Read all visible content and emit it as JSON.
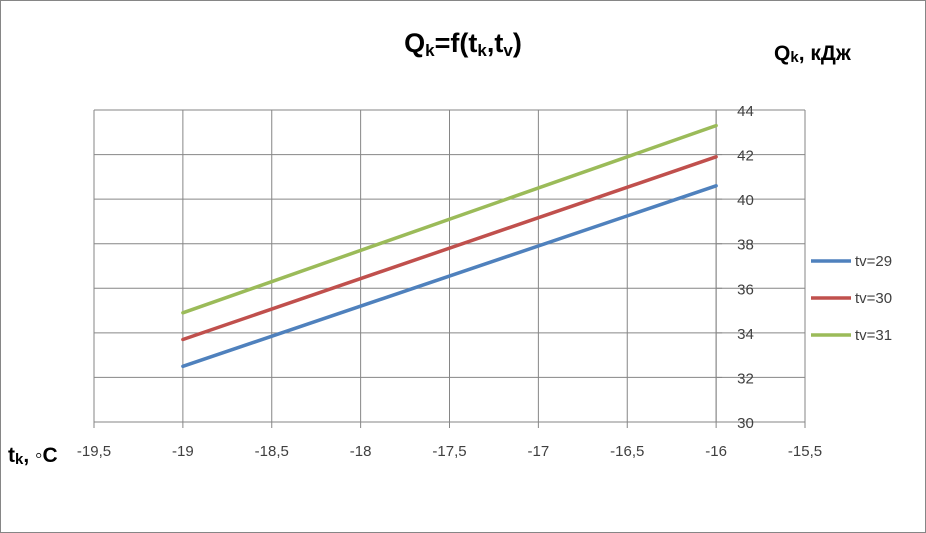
{
  "chart_data": {
    "type": "line",
    "title": {
      "main": "Q",
      "sub": "k",
      "tail": "=f(t",
      "sub2": "k",
      "mid": ",t",
      "sub3": "v",
      "end": ")"
    },
    "ylabel": {
      "main": "Q",
      "sub": "k",
      "tail": ", кДж"
    },
    "xlabel": {
      "main": "t",
      "sub": "k",
      "tail": ", ◦С"
    },
    "xlim": [
      -19.5,
      -15.5
    ],
    "ylim": [
      30,
      44
    ],
    "x_ticks": [
      {
        "value": -19.5,
        "label": "-19,5"
      },
      {
        "value": -19,
        "label": "-19"
      },
      {
        "value": -18.5,
        "label": "-18,5"
      },
      {
        "value": -18,
        "label": "-18"
      },
      {
        "value": -17.5,
        "label": "-17,5"
      },
      {
        "value": -17,
        "label": "-17"
      },
      {
        "value": -16.5,
        "label": "-16,5"
      },
      {
        "value": -16,
        "label": "-16"
      },
      {
        "value": -15.5,
        "label": "-15,5"
      }
    ],
    "y_ticks": [
      {
        "value": 30,
        "label": "30"
      },
      {
        "value": 32,
        "label": "32"
      },
      {
        "value": 34,
        "label": "34"
      },
      {
        "value": 36,
        "label": "36"
      },
      {
        "value": 38,
        "label": "38"
      },
      {
        "value": 40,
        "label": "40"
      },
      {
        "value": 42,
        "label": "42"
      },
      {
        "value": 44,
        "label": "44"
      }
    ],
    "grid": true,
    "legend_position": "right",
    "series": [
      {
        "name": "tv=29",
        "color": "#4F81BD",
        "x": [
          -19,
          -16
        ],
        "y": [
          32.5,
          40.6
        ]
      },
      {
        "name": "tv=30",
        "color": "#C0504D",
        "x": [
          -19,
          -16
        ],
        "y": [
          33.7,
          41.9
        ]
      },
      {
        "name": "tv=31",
        "color": "#9BBB59",
        "x": [
          -19,
          -16
        ],
        "y": [
          34.9,
          43.3
        ]
      }
    ]
  }
}
